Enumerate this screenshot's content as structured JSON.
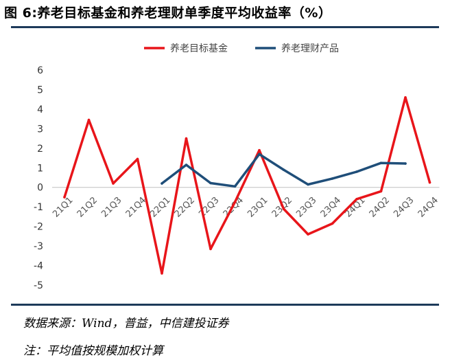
{
  "title": "图 6:养老目标基金和养老理财单季度平均收益率（%）",
  "notes": {
    "source": "数据来源：Wind，普益，中信建投证券",
    "footnote": "注：平均值按规模加权计算"
  },
  "chart_data": {
    "type": "line",
    "title": "图 6:养老目标基金和养老理财单季度平均收益率（%）",
    "xlabel": "",
    "ylabel": "",
    "ylim": [
      -5,
      6
    ],
    "yticks": [
      -5,
      -4,
      -3,
      -2,
      -1,
      0,
      1,
      2,
      3,
      4,
      5,
      6
    ],
    "grid": false,
    "legend_position": "top",
    "categories": [
      "21Q1",
      "21Q2",
      "21Q3",
      "21Q4",
      "22Q1",
      "22Q2",
      "22Q3",
      "22Q4",
      "23Q1",
      "23Q2",
      "23Q3",
      "23Q4",
      "24Q1",
      "24Q2",
      "24Q3",
      "24Q4"
    ],
    "series": [
      {
        "name": "养老目标基金",
        "color": "#e8151a",
        "values": [
          -0.5,
          3.45,
          0.2,
          1.45,
          -4.4,
          2.5,
          -3.15,
          -0.75,
          1.9,
          -1.1,
          -2.4,
          -1.85,
          -0.6,
          -0.2,
          4.6,
          0.25
        ]
      },
      {
        "name": "养老理财产品",
        "color": "#1f4e79",
        "values": [
          null,
          null,
          null,
          null,
          0.2,
          1.15,
          0.22,
          0.05,
          1.7,
          0.9,
          0.15,
          0.45,
          0.8,
          1.25,
          1.22,
          null
        ]
      }
    ]
  }
}
